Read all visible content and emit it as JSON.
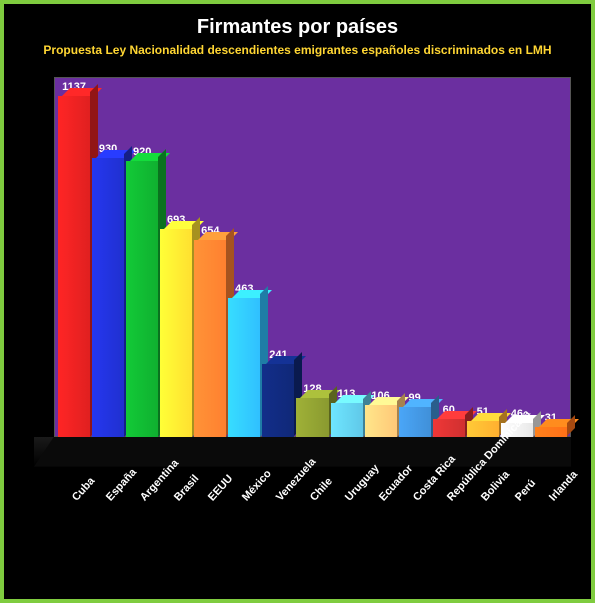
{
  "chart": {
    "type": "bar",
    "title": "Firmantes por países",
    "subtitle": "Propuesta Ley Nacionalidad descendientes emigrantes españoles discriminados en LMH",
    "title_color": "#ffffff",
    "title_fontsize": 20,
    "subtitle_color": "#ffd633",
    "subtitle_fontsize": 12,
    "background_color": "#000000",
    "border_color": "#7fcc3f",
    "plot_background": "#6b2fa0",
    "label_color": "#ffffff",
    "label_fontsize": 11,
    "y_max": 1200,
    "categories": [
      "Cuba",
      "España",
      "Argentina",
      "Brasil",
      "EEUU",
      "México",
      "Venezuela",
      "Chile",
      "Uruguay",
      "Ecuador",
      "Costa Rica",
      "República Dominicana",
      "Bolivia",
      "Perú",
      "Irlanda"
    ],
    "values": [
      1137,
      930,
      920,
      693,
      654,
      463,
      241,
      128,
      113,
      106,
      99,
      60,
      51,
      46,
      31
    ],
    "bar_colors": [
      "#e02020",
      "#2030d0",
      "#10b030",
      "#ffe030",
      "#ff8030",
      "#30c0ff",
      "#102878",
      "#8a9a30",
      "#60c8e8",
      "#ffc878",
      "#4090d8",
      "#d03030",
      "#ffb030",
      "#e8e8e8",
      "#ff7018"
    ],
    "bar_top_shade": 1.25,
    "bar_side_shade": 0.65
  }
}
